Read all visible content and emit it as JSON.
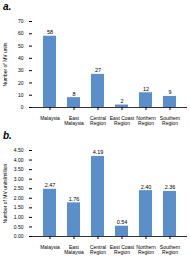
{
  "chart_data": [
    {
      "type": "bar",
      "title": "a.",
      "categories": [
        "Malaysia",
        "East\nMalaysia",
        "Central\nRegion",
        "East Coast\nRegion",
        "Northern\nRegion",
        "Southern\nRegion"
      ],
      "values": [
        58,
        8,
        27,
        2,
        12,
        9
      ],
      "color": "#5b8fcc",
      "y_label": "Number of MV units",
      "ylim": [
        0,
        70
      ],
      "yticks": [
        0,
        10,
        20,
        30,
        40,
        50,
        60,
        70
      ],
      "grid": false,
      "data_labels": true
    },
    {
      "type": "bar",
      "title": "b.",
      "categories": [
        "Malaysia",
        "East\nMalaysia",
        "Central\nRegion",
        "East Coast\nRegion",
        "Northern\nRegion",
        "Southern\nRegion"
      ],
      "values": [
        2.47,
        1.76,
        4.19,
        0.54,
        2.4,
        2.36
      ],
      "value_labels": [
        "2.47",
        "1.76",
        "4.19",
        "0.54",
        "2.40",
        "2.36"
      ],
      "color": "#5b8fcc",
      "y_label": "Number of MV units/million",
      "ylim": [
        0,
        4.5
      ],
      "yticks": [
        {
          "value": 0,
          "label": "0.00"
        },
        {
          "value": 0.5,
          "label": "0.50"
        },
        {
          "value": 1,
          "label": "1.00"
        },
        {
          "value": 1.5,
          "label": "1.50"
        },
        {
          "value": 2,
          "label": "2.00"
        },
        {
          "value": 2.5,
          "label": "2.50"
        },
        {
          "value": 3,
          "label": "3.00"
        },
        {
          "value": 3.5,
          "label": "3.50"
        },
        {
          "value": 4,
          "label": "4.00"
        },
        {
          "value": 4.5,
          "label": "4.50"
        }
      ],
      "grid": false,
      "data_labels": true
    }
  ]
}
